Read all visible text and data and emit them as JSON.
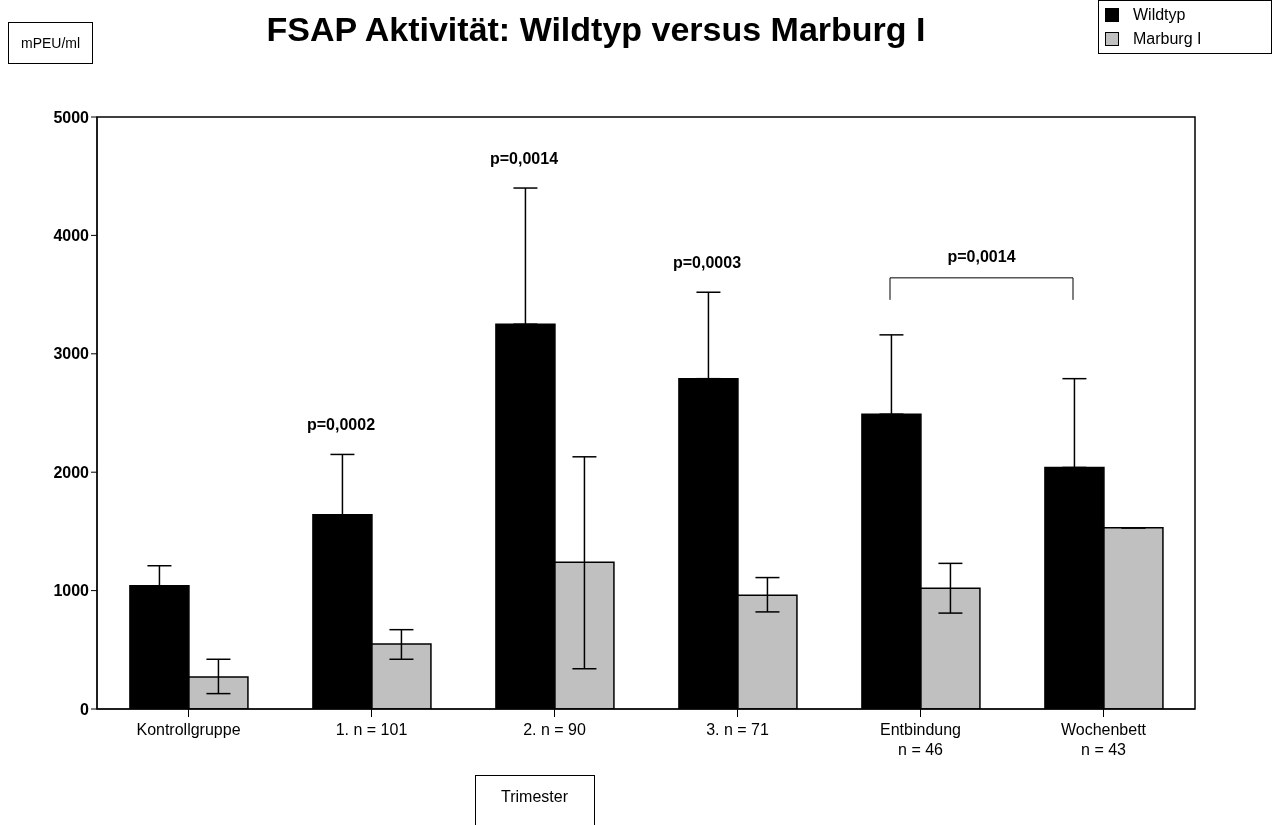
{
  "chart_data": {
    "type": "bar",
    "title": "FSAP Aktivität: Wildtyp versus Marburg I",
    "ylabel": "mPEU/ml",
    "xlabel": "Trimester",
    "categories": [
      "Kontrollgruppe",
      "1. n = 101",
      "2. n = 90",
      "3. n = 71",
      "Entbindung\nn = 46",
      "Wochenbett\nn = 43"
    ],
    "series": [
      {
        "name": "Wildtyp",
        "color": "#000000",
        "values": [
          1040,
          1640,
          3250,
          2790,
          2490,
          2040
        ],
        "errors": [
          [
            1040,
            1210
          ],
          [
            1640,
            2150
          ],
          [
            3250,
            4400
          ],
          [
            2790,
            3520
          ],
          [
            2490,
            3160
          ],
          [
            2040,
            2790
          ]
        ]
      },
      {
        "name": "Marburg I",
        "color": "#c0c0c0",
        "values": [
          270,
          550,
          1240,
          960,
          1020,
          1530
        ],
        "errors": [
          [
            130,
            420
          ],
          [
            420,
            670
          ],
          [
            340,
            2130
          ],
          [
            820,
            1110
          ],
          [
            810,
            1230
          ],
          null
        ]
      }
    ],
    "ylim": [
      0,
      5000
    ],
    "yticks": [
      0,
      1000,
      2000,
      3000,
      4000,
      5000
    ],
    "legend": "top right",
    "annotations": [
      "p=0,0002",
      "p=0,0014",
      "p=0,0003",
      "p=0,0014"
    ]
  }
}
